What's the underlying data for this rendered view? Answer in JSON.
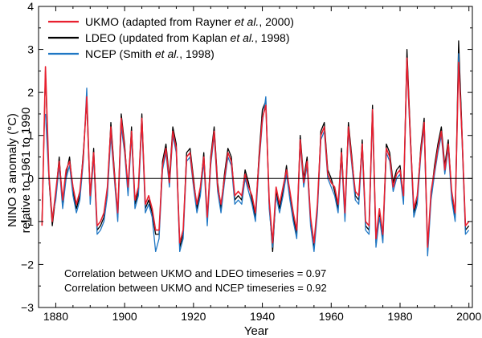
{
  "chart_data": {
    "type": "line",
    "xlabel": "Year",
    "ylabel_line1": "NINO 3 anomaly (°C)",
    "ylabel_line2": "relative to 1961 to 1990",
    "xlim": [
      1875,
      2001
    ],
    "ylim": [
      -3,
      4
    ],
    "x_ticks": [
      1880,
      1900,
      1920,
      1940,
      1960,
      1980,
      2000
    ],
    "y_ticks": [
      -3,
      -2,
      -1,
      0,
      1,
      2,
      3,
      4
    ],
    "x_tick_labels": [
      "1880",
      "1900",
      "1920",
      "1940",
      "1960",
      "1980",
      "2000"
    ],
    "y_tick_labels": [
      "−3",
      "−2",
      "−1",
      "0",
      "1",
      "2",
      "3",
      "4"
    ],
    "zero_line": true,
    "grid": false,
    "legend_position": "top-left",
    "legend": [
      {
        "pre": "UKMO (adapted from Rayner ",
        "ital": "et al.",
        "post": ", 2000)"
      },
      {
        "pre": "LDEO (updated from Kaplan ",
        "ital": "et al.",
        "post": ", 1998)"
      },
      {
        "pre": "NCEP (Smith ",
        "ital": "et al.",
        "post": ", 1998)"
      }
    ],
    "annotations": [
      "Correlation between UKMO and LDEO timeseries = 0.97",
      "Correlation between UKMO and NCEP timeseries = 0.92"
    ],
    "colors": {
      "UKMO": "#e8202f",
      "LDEO": "#000000",
      "NCEP": "#1f77c4",
      "axis": "#000000"
    },
    "x": [
      1876,
      1877,
      1878,
      1879,
      1880,
      1881,
      1882,
      1883,
      1884,
      1885,
      1886,
      1887,
      1888,
      1889,
      1890,
      1891,
      1892,
      1893,
      1894,
      1895,
      1896,
      1897,
      1898,
      1899,
      1900,
      1901,
      1902,
      1903,
      1904,
      1905,
      1906,
      1907,
      1908,
      1909,
      1910,
      1911,
      1912,
      1913,
      1914,
      1915,
      1916,
      1917,
      1918,
      1919,
      1920,
      1921,
      1922,
      1923,
      1924,
      1925,
      1926,
      1927,
      1928,
      1929,
      1930,
      1931,
      1932,
      1933,
      1934,
      1935,
      1936,
      1937,
      1938,
      1939,
      1940,
      1941,
      1942,
      1943,
      1944,
      1945,
      1946,
      1947,
      1948,
      1949,
      1950,
      1951,
      1952,
      1953,
      1954,
      1955,
      1956,
      1957,
      1958,
      1959,
      1960,
      1961,
      1962,
      1963,
      1964,
      1965,
      1966,
      1967,
      1968,
      1969,
      1970,
      1971,
      1972,
      1973,
      1974,
      1975,
      1976,
      1977,
      1978,
      1979,
      1980,
      1981,
      1982,
      1983,
      1984,
      1985,
      1986,
      1987,
      1988,
      1989,
      1990,
      1991,
      1992,
      1993,
      1994,
      1995,
      1996,
      1997,
      1998,
      1999,
      2000
    ],
    "series": [
      {
        "name": "UKMO",
        "values": [
          -1.1,
          2.6,
          0.1,
          -1.0,
          -0.3,
          0.4,
          -0.5,
          0.2,
          0.4,
          -0.2,
          -0.6,
          -0.3,
          0.5,
          1.9,
          -0.4,
          0.6,
          -1.1,
          -1.0,
          -0.8,
          -0.2,
          1.2,
          0.1,
          -0.8,
          1.4,
          0.7,
          -0.2,
          1.1,
          -0.5,
          -0.2,
          1.4,
          -0.6,
          -0.4,
          -0.7,
          -1.2,
          -1.2,
          0.3,
          0.7,
          -0.1,
          1.1,
          0.7,
          -1.5,
          -1.2,
          0.5,
          0.6,
          -0.1,
          -0.6,
          -0.2,
          0.5,
          -0.9,
          0.4,
          1.1,
          -0.2,
          -0.6,
          0.0,
          0.6,
          0.4,
          -0.4,
          -0.3,
          -0.4,
          0.1,
          -0.2,
          -0.4,
          -0.8,
          0.4,
          1.4,
          1.7,
          -0.5,
          -1.5,
          -0.2,
          -0.6,
          -0.2,
          0.2,
          -0.3,
          -0.8,
          -1.2,
          0.9,
          -0.1,
          0.4,
          -0.9,
          -1.5,
          -0.6,
          1.0,
          1.2,
          0.1,
          -0.1,
          -0.2,
          -0.6,
          0.6,
          -0.8,
          1.2,
          0.4,
          -0.3,
          -0.4,
          0.8,
          -1.0,
          -1.1,
          1.6,
          -1.4,
          -0.7,
          -1.3,
          0.7,
          0.5,
          -0.2,
          0.1,
          0.2,
          -0.4,
          2.8,
          0.9,
          -0.7,
          -0.4,
          0.6,
          1.3,
          -1.6,
          -0.3,
          0.2,
          0.7,
          1.1,
          0.2,
          0.8,
          -0.3,
          -0.8,
          2.7,
          1.0,
          -1.1,
          -1.0
        ]
      },
      {
        "name": "LDEO",
        "values": [
          -1.0,
          2.5,
          0.0,
          -1.1,
          -0.4,
          0.5,
          -0.6,
          0.1,
          0.5,
          -0.3,
          -0.7,
          -0.4,
          0.6,
          1.8,
          -0.5,
          0.7,
          -1.2,
          -1.1,
          -0.9,
          -0.3,
          1.3,
          0.2,
          -0.9,
          1.5,
          0.8,
          -0.3,
          1.2,
          -0.6,
          -0.3,
          1.5,
          -0.7,
          -0.5,
          -0.8,
          -1.3,
          -1.3,
          0.4,
          0.8,
          0.0,
          1.2,
          0.8,
          -1.6,
          -1.3,
          0.6,
          0.7,
          0.0,
          -0.7,
          -0.3,
          0.6,
          -1.0,
          0.5,
          1.2,
          -0.1,
          -0.7,
          0.1,
          0.7,
          0.5,
          -0.5,
          -0.4,
          -0.5,
          0.2,
          -0.1,
          -0.5,
          -0.9,
          0.5,
          1.6,
          1.8,
          -0.6,
          -1.7,
          -0.3,
          -0.7,
          -0.3,
          0.3,
          -0.4,
          -0.9,
          -1.3,
          1.0,
          0.0,
          0.5,
          -1.0,
          -1.6,
          -0.7,
          1.1,
          1.3,
          0.2,
          0.0,
          -0.3,
          -0.7,
          0.7,
          -0.9,
          1.3,
          0.5,
          -0.4,
          -0.5,
          0.9,
          -1.1,
          -1.2,
          1.7,
          -1.5,
          -0.8,
          -1.4,
          0.8,
          0.6,
          -0.1,
          0.2,
          0.3,
          -0.5,
          3.0,
          1.0,
          -0.8,
          -0.5,
          0.7,
          1.4,
          -1.7,
          -0.4,
          0.3,
          0.8,
          1.2,
          0.3,
          0.9,
          -0.4,
          -0.9,
          3.2,
          1.1,
          -1.2,
          -1.1
        ]
      },
      {
        "name": "NCEP",
        "values": [
          null,
          1.5,
          0.0,
          -0.9,
          -0.5,
          0.3,
          -0.7,
          0.0,
          0.3,
          -0.4,
          -0.8,
          -0.5,
          0.4,
          2.1,
          -0.6,
          0.5,
          -1.3,
          -1.2,
          -1.0,
          -0.4,
          1.0,
          0.0,
          -1.0,
          1.2,
          0.6,
          -0.4,
          1.0,
          -0.7,
          -0.4,
          1.3,
          -0.8,
          -0.6,
          -0.9,
          -1.7,
          -1.4,
          0.2,
          0.6,
          -0.2,
          1.0,
          0.6,
          -1.7,
          -1.4,
          0.4,
          0.5,
          -0.2,
          -0.8,
          -0.4,
          0.4,
          -1.1,
          0.3,
          1.0,
          -0.3,
          -0.8,
          -0.1,
          0.5,
          0.3,
          -0.6,
          -0.5,
          -0.6,
          0.0,
          -0.3,
          -0.6,
          -1.0,
          0.3,
          1.3,
          1.9,
          -0.7,
          -1.6,
          -0.4,
          -0.8,
          -0.4,
          0.1,
          -0.5,
          -1.0,
          -1.4,
          0.8,
          -0.2,
          0.3,
          -1.1,
          -1.7,
          -0.8,
          0.9,
          1.1,
          0.0,
          -0.2,
          -0.4,
          -0.8,
          0.5,
          -1.0,
          1.1,
          0.3,
          -0.5,
          -0.6,
          0.7,
          -1.2,
          -1.3,
          1.5,
          -1.6,
          -0.9,
          -1.5,
          0.6,
          0.4,
          -0.3,
          0.0,
          0.1,
          -0.6,
          2.7,
          0.8,
          -0.9,
          -0.6,
          0.5,
          1.2,
          -1.8,
          -0.5,
          0.1,
          0.6,
          1.0,
          0.1,
          0.7,
          -0.5,
          -1.0,
          2.9,
          0.9,
          -1.3,
          -1.2
        ]
      }
    ]
  }
}
